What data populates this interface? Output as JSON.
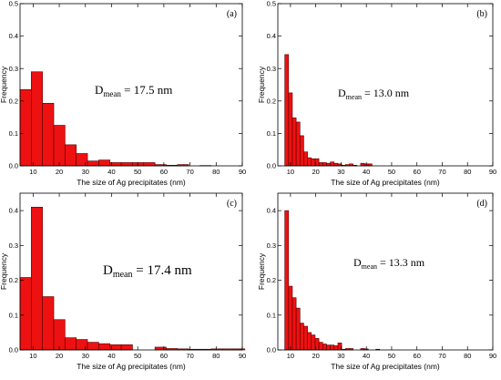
{
  "chart_data": [
    {
      "type": "bar",
      "panel_label": "(a)",
      "annotation": {
        "main": "D",
        "sub": "mean",
        "rest": " = 17.5 nm"
      },
      "xlabel": "The size of Ag precipitates (nm)",
      "ylabel": "Frequency",
      "xlim": [
        5,
        90
      ],
      "ylim": [
        0,
        0.5
      ],
      "xticks": [
        10,
        20,
        30,
        40,
        50,
        60,
        70,
        80,
        90
      ],
      "yticks": [
        0.0,
        0.1,
        0.2,
        0.3,
        0.4,
        0.5
      ],
      "bin_width": 4.3,
      "bin_starts": [
        5.0,
        9.3,
        13.6,
        17.9,
        22.2,
        26.5,
        30.8,
        35.1,
        39.4,
        43.7,
        48.0,
        52.3,
        56.6,
        60.9,
        65.2,
        69.5,
        73.8,
        78.1,
        82.4,
        86.7
      ],
      "values": [
        0.235,
        0.29,
        0.193,
        0.125,
        0.065,
        0.038,
        0.015,
        0.018,
        0.01,
        0.01,
        0.01,
        0.01,
        0.004,
        0.002,
        0.004,
        0.0,
        0.001,
        0.0,
        0.0,
        0.0
      ]
    },
    {
      "type": "bar",
      "panel_label": "(b)",
      "annotation": {
        "main": "D",
        "sub": "mean",
        "rest": " = 13.0 nm"
      },
      "xlabel": "The size of Ag precipitates (nm)",
      "ylabel": "Frequency",
      "xlim": [
        5,
        90
      ],
      "ylim": [
        0,
        0.5
      ],
      "xticks": [
        10,
        20,
        30,
        40,
        50,
        60,
        70,
        80,
        90
      ],
      "yticks": [
        0.0,
        0.1,
        0.2,
        0.3,
        0.4,
        0.5
      ],
      "bin_width": 1.5,
      "bin_starts": [
        7.75,
        9.25,
        10.75,
        12.25,
        13.75,
        15.25,
        16.75,
        18.25,
        19.75,
        21.25,
        22.75,
        24.25,
        25.75,
        27.25,
        28.75,
        30.25,
        31.75,
        33.25,
        34.75,
        36.25,
        37.75,
        39.25,
        40.75
      ],
      "values": [
        0.343,
        0.225,
        0.148,
        0.135,
        0.093,
        0.043,
        0.025,
        0.022,
        0.022,
        0.01,
        0.01,
        0.008,
        0.012,
        0.008,
        0.006,
        0.002,
        0.004,
        0.006,
        0.002,
        0.0,
        0.008,
        0.006,
        0.006
      ]
    },
    {
      "type": "bar",
      "panel_label": "(c)",
      "annotation": {
        "main": "D",
        "sub": "mean",
        "rest": " = 17.4 nm"
      },
      "xlabel": "The size of Ag precipitates (nm)",
      "ylabel": "Frequency",
      "xlim": [
        5,
        90
      ],
      "ylim": [
        0,
        0.45
      ],
      "xticks": [
        10,
        20,
        30,
        40,
        50,
        60,
        70,
        80,
        90
      ],
      "yticks": [
        0.0,
        0.1,
        0.2,
        0.3,
        0.4
      ],
      "bin_width": 4.3,
      "bin_starts": [
        5.0,
        9.3,
        13.6,
        17.9,
        22.2,
        26.5,
        30.8,
        35.1,
        39.4,
        43.7,
        48.0,
        52.3,
        56.6,
        60.9,
        65.2,
        69.5,
        73.8,
        78.1,
        82.4,
        86.7
      ],
      "values": [
        0.208,
        0.41,
        0.153,
        0.087,
        0.035,
        0.03,
        0.022,
        0.018,
        0.015,
        0.015,
        0.0,
        0.0,
        0.008,
        0.004,
        0.003,
        0.002,
        0.002,
        0.003,
        0.003,
        0.003
      ]
    },
    {
      "type": "bar",
      "panel_label": "(d)",
      "annotation": {
        "main": "D",
        "sub": "mean",
        "rest": " = 13.3 nm"
      },
      "xlabel": "The size of Ag precipitates (nm)",
      "ylabel": "Frequency",
      "xlim": [
        5,
        90
      ],
      "ylim": [
        0,
        0.45
      ],
      "xticks": [
        10,
        20,
        30,
        40,
        50,
        60,
        70,
        80,
        90
      ],
      "yticks": [
        0.0,
        0.1,
        0.2,
        0.3,
        0.4
      ],
      "bin_width": 1.5,
      "bin_starts": [
        7.75,
        9.25,
        10.75,
        12.25,
        13.75,
        15.25,
        16.75,
        18.25,
        19.75,
        21.25,
        22.75,
        24.25,
        25.75,
        27.25,
        28.75,
        30.25,
        31.75,
        33.25,
        34.75,
        36.25,
        37.75,
        39.25,
        40.75,
        42.25,
        43.75
      ],
      "values": [
        0.4,
        0.183,
        0.15,
        0.12,
        0.077,
        0.068,
        0.05,
        0.043,
        0.033,
        0.022,
        0.017,
        0.014,
        0.014,
        0.012,
        0.02,
        0.002,
        0.004,
        0.004,
        0.0,
        0.0,
        0.004,
        0.003,
        0.0,
        0.0,
        0.002
      ]
    }
  ],
  "colors": {
    "bar_fill": "#ee1111",
    "bar_stroke": "#550000",
    "axis": "#000000"
  }
}
